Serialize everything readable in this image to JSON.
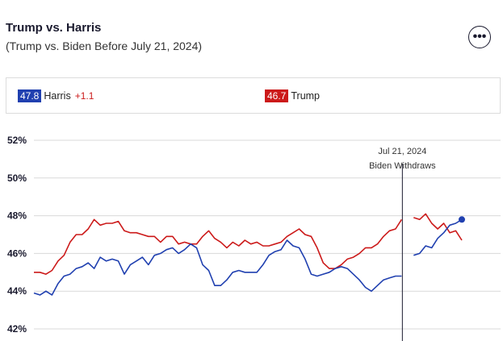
{
  "header": {
    "title": "Trump vs. Harris",
    "subtitle": "(Trump vs. Biden Before July 21, 2024)"
  },
  "menu": {
    "icon": "more-horizontal-icon",
    "label": "•••"
  },
  "legend": {
    "harris": {
      "value": "47.8",
      "name": "Harris",
      "change": "+1.1",
      "color": "#2040b0"
    },
    "trump": {
      "value": "46.7",
      "name": "Trump",
      "color": "#cc1a1a"
    }
  },
  "chart_data": {
    "type": "line",
    "ylim": [
      41.5,
      52.5
    ],
    "yticks": [
      42,
      44,
      46,
      48,
      50,
      52
    ],
    "ytick_labels": [
      "42%",
      "44%",
      "46%",
      "48%",
      "50%",
      "52%"
    ],
    "grid": true,
    "annotation": {
      "date_label": "Jul 21, 2024",
      "event_label": "Biden Withdraws",
      "x_index": 61
    },
    "series": [
      {
        "name": "Trump",
        "color": "#cc1a1a",
        "values": [
          45.0,
          45.0,
          44.9,
          45.1,
          45.6,
          45.9,
          46.6,
          47.0,
          47.0,
          47.3,
          47.8,
          47.5,
          47.6,
          47.6,
          47.7,
          47.2,
          47.1,
          47.1,
          47.0,
          46.9,
          46.9,
          46.6,
          46.9,
          46.9,
          46.5,
          46.6,
          46.5,
          46.5,
          46.9,
          47.2,
          46.8,
          46.6,
          46.3,
          46.6,
          46.4,
          46.7,
          46.5,
          46.6,
          46.4,
          46.4,
          46.5,
          46.6,
          46.9,
          47.1,
          47.3,
          47.0,
          46.9,
          46.3,
          45.5,
          45.2,
          45.2,
          45.4,
          45.7,
          45.8,
          46.0,
          46.3,
          46.3,
          46.5,
          46.9,
          47.2,
          47.3,
          47.8,
          null,
          47.9,
          47.8,
          48.1,
          47.6,
          47.3,
          47.6,
          47.1,
          47.2,
          46.7
        ],
        "gap_after_index": 61
      },
      {
        "name": "Harris",
        "color": "#2040b0",
        "values": [
          43.9,
          43.8,
          44.0,
          43.8,
          44.4,
          44.8,
          44.9,
          45.2,
          45.3,
          45.5,
          45.2,
          45.8,
          45.6,
          45.7,
          45.6,
          44.9,
          45.4,
          45.6,
          45.8,
          45.4,
          45.9,
          46.0,
          46.2,
          46.3,
          46.0,
          46.2,
          46.5,
          46.3,
          45.4,
          45.1,
          44.3,
          44.3,
          44.6,
          45.0,
          45.1,
          45.0,
          45.0,
          45.0,
          45.4,
          45.9,
          46.1,
          46.2,
          46.7,
          46.4,
          46.3,
          45.7,
          44.9,
          44.8,
          44.9,
          45.0,
          45.2,
          45.3,
          45.2,
          44.9,
          44.6,
          44.2,
          44.0,
          44.3,
          44.6,
          44.7,
          44.8,
          44.8,
          null,
          45.9,
          46.0,
          46.4,
          46.3,
          46.8,
          47.1,
          47.5,
          47.6,
          47.8
        ],
        "gap_after_index": 61
      }
    ]
  }
}
